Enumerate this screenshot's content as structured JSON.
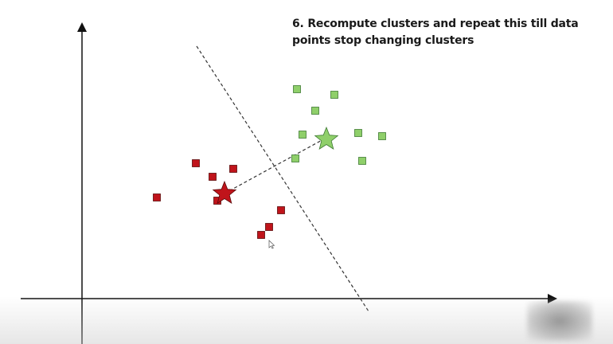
{
  "caption": "6. Recompute clusters and repeat this till data points stop changing clusters",
  "colors": {
    "red_cluster": "#c0141b",
    "red_stroke": "#5a0a0a",
    "green_cluster": "#8fcf6a",
    "green_stroke": "#3f7a34",
    "axis": "#111111",
    "dashed_line": "#333333"
  },
  "red_points": [
    [
      197,
      248
    ],
    [
      246,
      205
    ],
    [
      267,
      222
    ],
    [
      293,
      212
    ],
    [
      273,
      252
    ],
    [
      353,
      264
    ],
    [
      338,
      285
    ],
    [
      328,
      295
    ]
  ],
  "green_points": [
    [
      373,
      112
    ],
    [
      420,
      119
    ],
    [
      396,
      139
    ],
    [
      380,
      169
    ],
    [
      450,
      167
    ],
    [
      480,
      171
    ],
    [
      371,
      199
    ],
    [
      455,
      202
    ]
  ],
  "red_centroid": [
    282,
    243
  ],
  "green_centroid": [
    410,
    175
  ]
}
